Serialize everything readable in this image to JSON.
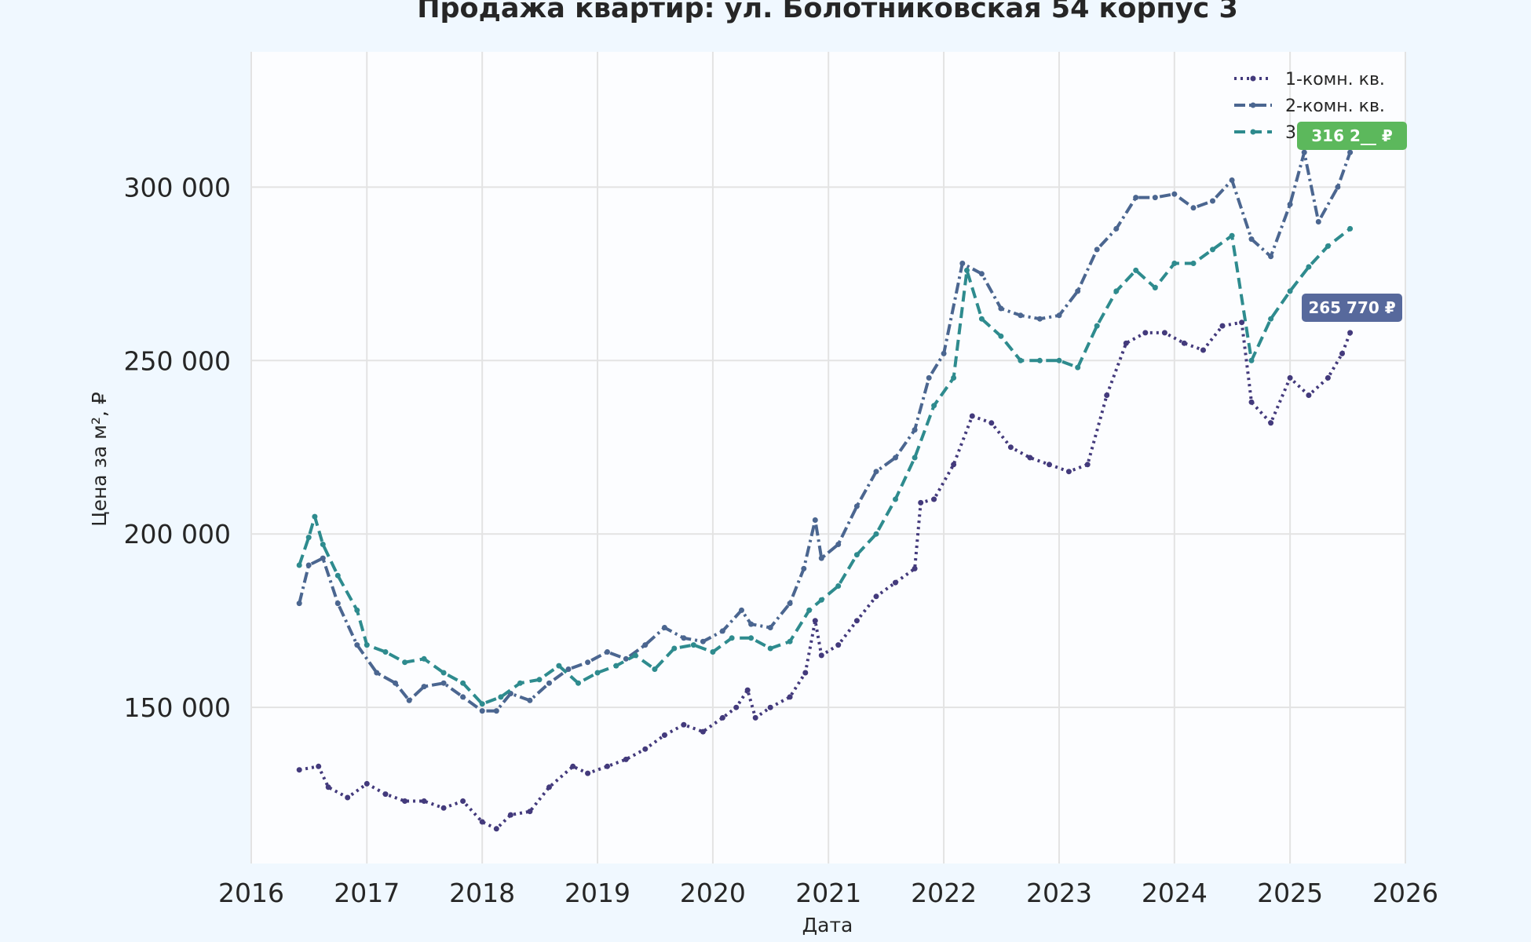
{
  "chart_data": {
    "type": "line",
    "title": "Продажа квартир: ул. Болотниковская 54 корпус 3",
    "xlabel": "Дата",
    "ylabel": "Цена за м², ₽",
    "xlim": [
      "2016-01-01",
      "2026-01-01"
    ],
    "ylim": [
      105000,
      339000
    ],
    "x_ticks": [
      "2016",
      "2017",
      "2018",
      "2019",
      "2020",
      "2021",
      "2022",
      "2023",
      "2024",
      "2025",
      "2026"
    ],
    "y_ticks": [
      {
        "value": 150000,
        "label": "150 000"
      },
      {
        "value": 200000,
        "label": "200 000"
      },
      {
        "value": 250000,
        "label": "250 000"
      },
      {
        "value": 300000,
        "label": "300 000"
      }
    ],
    "grid": true,
    "legend_position": "top-right",
    "background_color": "#f0f8ff",
    "plot_background_color": "#fcfdff",
    "series": [
      {
        "name": "1-комн. кв.",
        "color": "#433a7c",
        "line_style": "dotted",
        "points": [
          [
            "2016-06-01",
            132000
          ],
          [
            "2016-08-01",
            133000
          ],
          [
            "2016-09-01",
            127000
          ],
          [
            "2016-11-01",
            124000
          ],
          [
            "2017-01-01",
            128000
          ],
          [
            "2017-03-01",
            125000
          ],
          [
            "2017-05-01",
            123000
          ],
          [
            "2017-07-01",
            123000
          ],
          [
            "2017-09-01",
            121000
          ],
          [
            "2017-11-01",
            123000
          ],
          [
            "2018-01-01",
            117000
          ],
          [
            "2018-02-15",
            115000
          ],
          [
            "2018-04-01",
            119000
          ],
          [
            "2018-06-01",
            120000
          ],
          [
            "2018-08-01",
            127000
          ],
          [
            "2018-10-15",
            133000
          ],
          [
            "2018-12-01",
            131000
          ],
          [
            "2019-02-01",
            133000
          ],
          [
            "2019-04-01",
            135000
          ],
          [
            "2019-06-01",
            138000
          ],
          [
            "2019-08-01",
            142000
          ],
          [
            "2019-10-01",
            145000
          ],
          [
            "2019-12-01",
            143000
          ],
          [
            "2020-02-01",
            147000
          ],
          [
            "2020-03-15",
            150000
          ],
          [
            "2020-04-20",
            155000
          ],
          [
            "2020-05-15",
            147000
          ],
          [
            "2020-07-01",
            150000
          ],
          [
            "2020-09-01",
            153000
          ],
          [
            "2020-10-20",
            160000
          ],
          [
            "2020-11-20",
            175000
          ],
          [
            "2020-12-10",
            165000
          ],
          [
            "2021-02-01",
            168000
          ],
          [
            "2021-04-01",
            175000
          ],
          [
            "2021-06-01",
            182000
          ],
          [
            "2021-08-01",
            186000
          ],
          [
            "2021-10-01",
            190000
          ],
          [
            "2021-10-20",
            209000
          ],
          [
            "2021-12-01",
            210000
          ],
          [
            "2022-02-01",
            220000
          ],
          [
            "2022-04-01",
            234000
          ],
          [
            "2022-06-01",
            232000
          ],
          [
            "2022-08-01",
            225000
          ],
          [
            "2022-10-01",
            222000
          ],
          [
            "2022-12-01",
            220000
          ],
          [
            "2023-02-01",
            218000
          ],
          [
            "2023-04-01",
            220000
          ],
          [
            "2023-06-01",
            240000
          ],
          [
            "2023-08-01",
            255000
          ],
          [
            "2023-10-01",
            258000
          ],
          [
            "2023-12-01",
            258000
          ],
          [
            "2024-02-01",
            255000
          ],
          [
            "2024-04-01",
            253000
          ],
          [
            "2024-06-01",
            260000
          ],
          [
            "2024-08-01",
            261000
          ],
          [
            "2024-09-01",
            238000
          ],
          [
            "2024-11-01",
            232000
          ],
          [
            "2025-01-01",
            245000
          ],
          [
            "2025-03-01",
            240000
          ],
          [
            "2025-05-01",
            245000
          ],
          [
            "2025-06-15",
            252000
          ],
          [
            "2025-07-10",
            258000
          ]
        ]
      },
      {
        "name": "2-комн. кв.",
        "color": "#4b6690",
        "line_style": "dashdot",
        "points": [
          [
            "2016-06-01",
            180000
          ],
          [
            "2016-07-01",
            191000
          ],
          [
            "2016-08-15",
            193000
          ],
          [
            "2016-10-01",
            180000
          ],
          [
            "2016-12-01",
            168000
          ],
          [
            "2017-02-01",
            160000
          ],
          [
            "2017-04-01",
            157000
          ],
          [
            "2017-05-15",
            152000
          ],
          [
            "2017-07-01",
            156000
          ],
          [
            "2017-09-01",
            157000
          ],
          [
            "2017-11-01",
            153000
          ],
          [
            "2018-01-01",
            149000
          ],
          [
            "2018-02-15",
            149000
          ],
          [
            "2018-04-01",
            154000
          ],
          [
            "2018-06-01",
            152000
          ],
          [
            "2018-08-01",
            157000
          ],
          [
            "2018-10-01",
            161000
          ],
          [
            "2018-12-01",
            163000
          ],
          [
            "2019-02-01",
            166000
          ],
          [
            "2019-04-01",
            164000
          ],
          [
            "2019-06-01",
            168000
          ],
          [
            "2019-08-01",
            173000
          ],
          [
            "2019-10-01",
            170000
          ],
          [
            "2019-12-01",
            169000
          ],
          [
            "2020-02-01",
            172000
          ],
          [
            "2020-04-01",
            178000
          ],
          [
            "2020-05-01",
            174000
          ],
          [
            "2020-07-01",
            173000
          ],
          [
            "2020-09-01",
            180000
          ],
          [
            "2020-10-15",
            190000
          ],
          [
            "2020-11-20",
            204000
          ],
          [
            "2020-12-10",
            193000
          ],
          [
            "2021-02-01",
            197000
          ],
          [
            "2021-04-01",
            208000
          ],
          [
            "2021-06-01",
            218000
          ],
          [
            "2021-08-01",
            222000
          ],
          [
            "2021-10-01",
            230000
          ],
          [
            "2021-11-15",
            245000
          ],
          [
            "2022-01-01",
            252000
          ],
          [
            "2022-03-01",
            278000
          ],
          [
            "2022-05-01",
            275000
          ],
          [
            "2022-07-01",
            265000
          ],
          [
            "2022-09-01",
            263000
          ],
          [
            "2022-11-01",
            262000
          ],
          [
            "2023-01-01",
            263000
          ],
          [
            "2023-03-01",
            270000
          ],
          [
            "2023-05-01",
            282000
          ],
          [
            "2023-07-01",
            288000
          ],
          [
            "2023-09-01",
            297000
          ],
          [
            "2023-11-01",
            297000
          ],
          [
            "2024-01-01",
            298000
          ],
          [
            "2024-03-01",
            294000
          ],
          [
            "2024-05-01",
            296000
          ],
          [
            "2024-07-01",
            302000
          ],
          [
            "2024-09-01",
            285000
          ],
          [
            "2024-11-01",
            280000
          ],
          [
            "2025-01-01",
            295000
          ],
          [
            "2025-02-15",
            310000
          ],
          [
            "2025-04-01",
            290000
          ],
          [
            "2025-06-01",
            300000
          ],
          [
            "2025-07-10",
            310000
          ]
        ]
      },
      {
        "name": "3-комн. кв.",
        "color": "#2e8b8e",
        "line_style": "dashed",
        "points": [
          [
            "2016-06-01",
            191000
          ],
          [
            "2016-07-01",
            199000
          ],
          [
            "2016-07-20",
            205000
          ],
          [
            "2016-08-15",
            197000
          ],
          [
            "2016-10-01",
            188000
          ],
          [
            "2016-12-01",
            178000
          ],
          [
            "2017-01-01",
            168000
          ],
          [
            "2017-03-01",
            166000
          ],
          [
            "2017-05-01",
            163000
          ],
          [
            "2017-07-01",
            164000
          ],
          [
            "2017-09-01",
            160000
          ],
          [
            "2017-11-01",
            157000
          ],
          [
            "2018-01-01",
            151000
          ],
          [
            "2018-03-01",
            153000
          ],
          [
            "2018-05-01",
            157000
          ],
          [
            "2018-07-01",
            158000
          ],
          [
            "2018-09-01",
            162000
          ],
          [
            "2018-11-01",
            157000
          ],
          [
            "2019-01-01",
            160000
          ],
          [
            "2019-03-01",
            162000
          ],
          [
            "2019-05-01",
            165000
          ],
          [
            "2019-07-01",
            161000
          ],
          [
            "2019-09-01",
            167000
          ],
          [
            "2019-11-01",
            168000
          ],
          [
            "2020-01-01",
            166000
          ],
          [
            "2020-03-01",
            170000
          ],
          [
            "2020-05-01",
            170000
          ],
          [
            "2020-07-01",
            167000
          ],
          [
            "2020-09-01",
            169000
          ],
          [
            "2020-11-01",
            178000
          ],
          [
            "2020-12-10",
            181000
          ],
          [
            "2021-02-01",
            185000
          ],
          [
            "2021-04-01",
            194000
          ],
          [
            "2021-06-01",
            200000
          ],
          [
            "2021-08-01",
            210000
          ],
          [
            "2021-10-01",
            222000
          ],
          [
            "2021-12-01",
            237000
          ],
          [
            "2022-02-01",
            245000
          ],
          [
            "2022-03-15",
            276000
          ],
          [
            "2022-05-01",
            262000
          ],
          [
            "2022-07-01",
            257000
          ],
          [
            "2022-09-01",
            250000
          ],
          [
            "2022-11-01",
            250000
          ],
          [
            "2023-01-01",
            250000
          ],
          [
            "2023-03-01",
            248000
          ],
          [
            "2023-05-01",
            260000
          ],
          [
            "2023-07-01",
            270000
          ],
          [
            "2023-09-01",
            276000
          ],
          [
            "2023-11-01",
            271000
          ],
          [
            "2024-01-01",
            278000
          ],
          [
            "2024-03-01",
            278000
          ],
          [
            "2024-05-01",
            282000
          ],
          [
            "2024-07-01",
            286000
          ],
          [
            "2024-09-01",
            250000
          ],
          [
            "2024-11-01",
            262000
          ],
          [
            "2025-01-01",
            270000
          ],
          [
            "2025-03-01",
            277000
          ],
          [
            "2025-05-01",
            283000
          ],
          [
            "2025-07-10",
            288000
          ]
        ]
      }
    ],
    "annotations": [
      {
        "text": "316 2__ ₽",
        "color": "#5cb85c"
      },
      {
        "text": "265 770 ₽",
        "color": "#57699c"
      }
    ]
  }
}
